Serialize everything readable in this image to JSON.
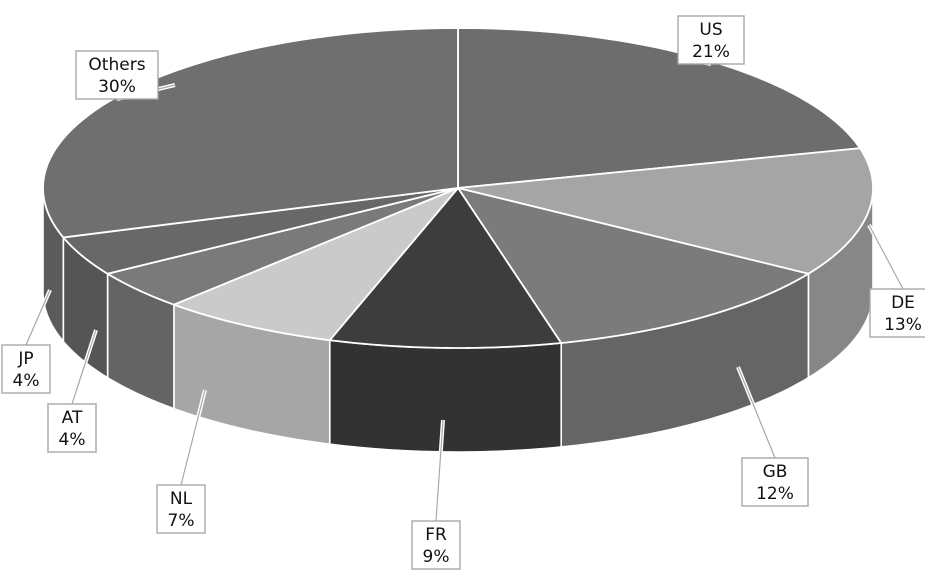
{
  "chart_data": {
    "type": "pie",
    "three_d": true,
    "legend": "none",
    "slices": [
      {
        "label": "US",
        "value": 21,
        "value_label": "21%",
        "color": "#6d6d6d"
      },
      {
        "label": "DE",
        "value": 13,
        "value_label": "13%",
        "color": "#a5a5a5"
      },
      {
        "label": "GB",
        "value": 12,
        "value_label": "12%",
        "color": "#7b7b7b"
      },
      {
        "label": "FR",
        "value": 9,
        "value_label": "9%",
        "color": "#3d3d3d"
      },
      {
        "label": "NL",
        "value": 7,
        "value_label": "7%",
        "color": "#cacaca"
      },
      {
        "label": "AT",
        "value": 4,
        "value_label": "4%",
        "color": "#7a7a7a"
      },
      {
        "label": "JP",
        "value": 4,
        "value_label": "4%",
        "color": "#686868"
      },
      {
        "label": "Others",
        "value": 30,
        "value_label": "30%",
        "color": "#6f6f6f"
      }
    ]
  }
}
